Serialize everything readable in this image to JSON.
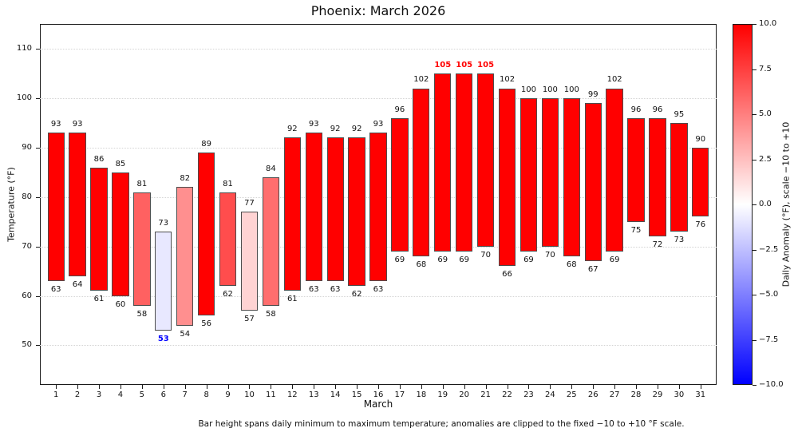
{
  "chart_data": {
    "type": "bar",
    "subtype": "floating-range-bars",
    "title": "Phoenix: March 2026",
    "xlabel": "March",
    "ylabel": "Temperature (°F)",
    "caption": "Bar height spans daily minimum to maximum temperature; anomalies are clipped to the fixed −10 to +10 °F scale.",
    "x": [
      1,
      2,
      3,
      4,
      5,
      6,
      7,
      8,
      9,
      10,
      11,
      12,
      13,
      14,
      15,
      16,
      17,
      18,
      19,
      20,
      21,
      22,
      23,
      24,
      25,
      26,
      27,
      28,
      29,
      30,
      31
    ],
    "series": [
      {
        "name": "daily_max_f",
        "values": [
          93,
          93,
          86,
          85,
          81,
          73,
          82,
          89,
          81,
          77,
          84,
          92,
          93,
          92,
          92,
          93,
          96,
          102,
          105,
          105,
          105,
          102,
          100,
          100,
          100,
          99,
          102,
          96,
          96,
          95,
          90
        ]
      },
      {
        "name": "daily_min_f",
        "values": [
          63,
          64,
          61,
          60,
          58,
          53,
          54,
          56,
          62,
          57,
          58,
          61,
          63,
          63,
          62,
          63,
          69,
          68,
          69,
          69,
          70,
          66,
          69,
          70,
          68,
          67,
          69,
          75,
          72,
          73,
          76
        ]
      },
      {
        "name": "anomaly_estimate_clipped_f",
        "values": [
          10,
          10,
          10,
          10,
          6,
          -1,
          4.5,
          10,
          7,
          2,
          5.5,
          10,
          10,
          10,
          10,
          10,
          10,
          10,
          10,
          10,
          10,
          10,
          10,
          10,
          10,
          10,
          10,
          10,
          10,
          10,
          10
        ]
      }
    ],
    "bar_colors": [
      "#ff0000",
      "#ff0000",
      "#ff0000",
      "#ff0000",
      "#ff6161",
      "#e8e8ff",
      "#ff8f8f",
      "#ff0000",
      "#ff4d4d",
      "#ffd3d3",
      "#ff6e6e",
      "#ff0000",
      "#ff0000",
      "#ff0000",
      "#ff0000",
      "#ff0000",
      "#ff0000",
      "#ff0000",
      "#ff0000",
      "#ff0000",
      "#ff0000",
      "#ff0000",
      "#ff0000",
      "#ff0000",
      "#ff0000",
      "#ff0000",
      "#ff0000",
      "#ff0000",
      "#ff0000",
      "#ff0000",
      "#ff0000"
    ],
    "highlight": {
      "max_red_days": [
        19,
        20,
        21
      ],
      "min_blue_days": [
        6
      ]
    },
    "label_colors": {
      "default": "#111111",
      "hot": "#ff0000",
      "cold": "#0000ff"
    },
    "bar_edge_color": "#4d4d4d",
    "grid": "dotted horizontal gridlines at y ticks",
    "y_axis": {
      "ticks": [
        50,
        60,
        70,
        80,
        90,
        100,
        110
      ],
      "range": [
        42,
        115
      ]
    },
    "x_axis": {
      "ticks": [
        1,
        2,
        3,
        4,
        5,
        6,
        7,
        8,
        9,
        10,
        11,
        12,
        13,
        14,
        15,
        16,
        17,
        18,
        19,
        20,
        21,
        22,
        23,
        24,
        25,
        26,
        27,
        28,
        29,
        30,
        31
      ]
    },
    "colorbar": {
      "label": "Daily Anomaly (°F), scale −10 to +10",
      "cmap": "blue-white-red",
      "top_color": "#ff0000",
      "mid_color": "#ffffff",
      "bottom_color": "#0000ff",
      "range": [
        -10,
        10
      ],
      "tick_values": [
        10,
        7.5,
        5,
        2.5,
        0,
        -2.5,
        -5,
        -7.5,
        -10
      ],
      "tick_labels": [
        "10.0",
        "7.5",
        "5.0",
        "2.5",
        "0.0",
        "−2.5",
        "−5.0",
        "−7.5",
        "−10.0"
      ]
    }
  }
}
